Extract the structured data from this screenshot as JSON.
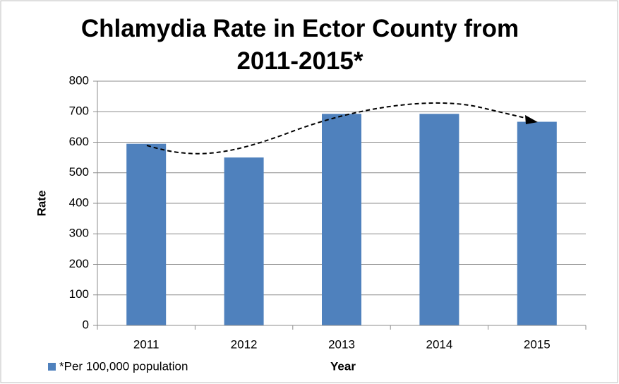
{
  "chart_data": {
    "type": "bar",
    "title": "Chlamydia Rate in Ector County from 2011-2015*",
    "x_label": "Year",
    "y_label": "Rate",
    "categories": [
      "2011",
      "2012",
      "2013",
      "2014",
      "2015"
    ],
    "series": [
      {
        "name": "*Per 100,000 population",
        "color": "#4f81bd",
        "values": [
          595,
          550,
          693,
          693,
          667
        ]
      }
    ],
    "ylim": [
      0,
      800
    ],
    "yticks": [
      0,
      100,
      200,
      300,
      400,
      500,
      600,
      700,
      800
    ],
    "grid": true,
    "legend": "bottom-left"
  }
}
